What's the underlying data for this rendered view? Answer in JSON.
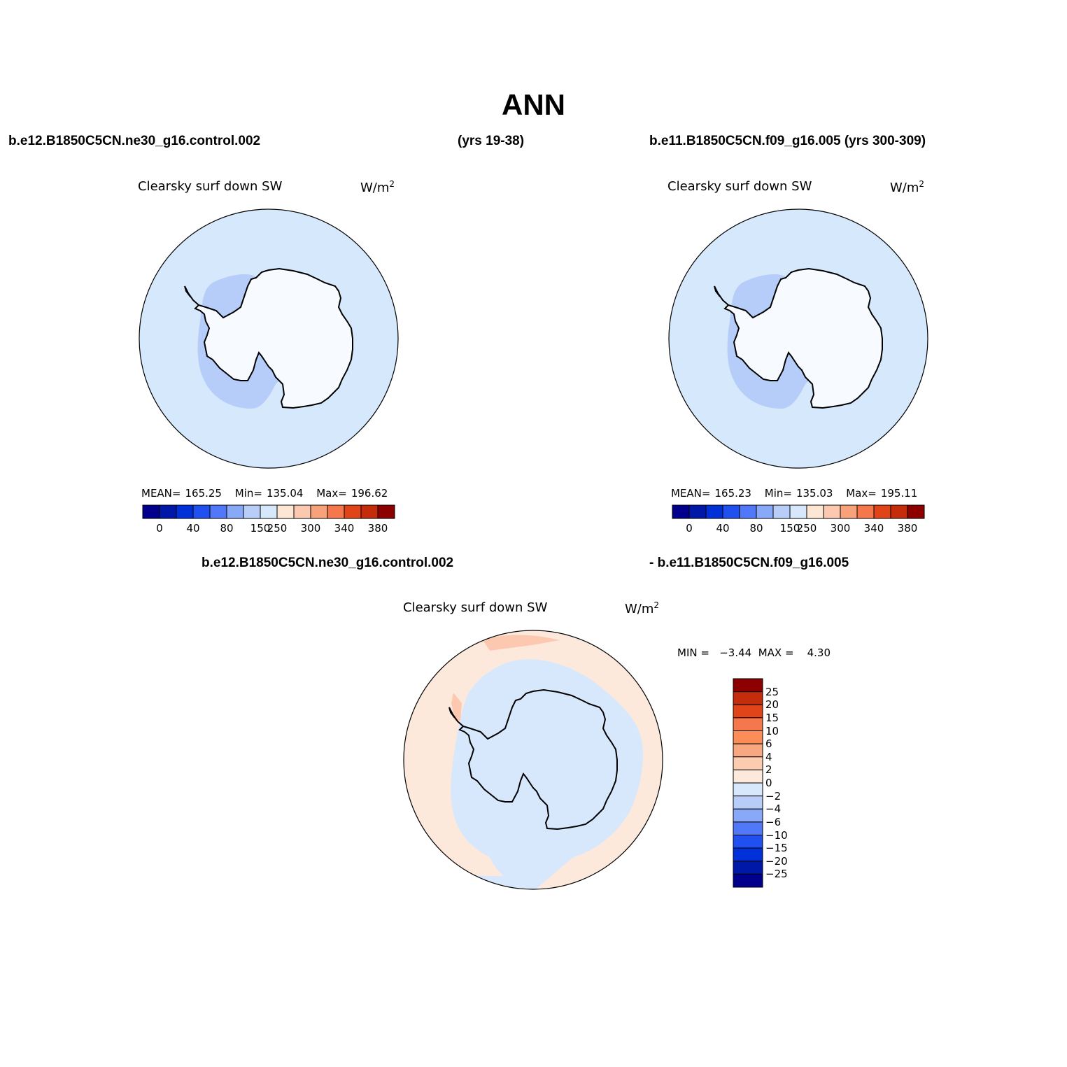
{
  "figure": {
    "title": "ANN",
    "case1_label": "b.e12.B1850C5CN.ne30_g16.control.002",
    "case1_years": "(yrs 19-38)",
    "case2_label": "b.e11.B1850C5CN.f09_g16.005 (yrs 300-309)",
    "diff_label_left": "b.e12.B1850C5CN.ne30_g16.control.002",
    "diff_label_right": "- b.e11.B1850C5CN.f09_g16.005"
  },
  "panels": {
    "left": {
      "title": "Clearsky surf down SW",
      "units": "W/m",
      "units_sup": "2",
      "mean_label": "MEAN=",
      "mean": "165.25",
      "min_label": "Min=",
      "min": "135.04",
      "max_label": "Max=",
      "max": "196.62"
    },
    "right": {
      "title": "Clearsky surf down SW",
      "units": "W/m",
      "units_sup": "2",
      "mean_label": "MEAN=",
      "mean": "165.23",
      "min_label": "Min=",
      "min": "135.03",
      "max_label": "Max=",
      "max": "195.11"
    },
    "diff": {
      "title": "Clearsky surf down SW",
      "units": "W/m",
      "units_sup": "2",
      "minmax": "MIN =   −3.44  MAX =    4.30"
    }
  },
  "colorbar_abs": {
    "colors": [
      "#00008c",
      "#0018a8",
      "#0030d8",
      "#2050f0",
      "#5078f8",
      "#88a8f8",
      "#b8cdf8",
      "#d8e8fc",
      "#fde6d4",
      "#fcc8b0",
      "#f8a27c",
      "#f4784c",
      "#e04418",
      "#c42c0c",
      "#8c0000"
    ],
    "labels": [
      "0",
      "40",
      "80",
      "150",
      "250",
      "300",
      "340",
      "380"
    ]
  },
  "colorbar_diff": {
    "colors_top_to_bottom": [
      "#8c0000",
      "#c42c0c",
      "#e04418",
      "#f4784c",
      "#fc8c58",
      "#f8a880",
      "#fcccb0",
      "#fde9dc",
      "#d8e8fc",
      "#b8cdf8",
      "#88a8f8",
      "#5078f8",
      "#2050f0",
      "#0030d8",
      "#0018a8",
      "#00008c"
    ],
    "labels": [
      "25",
      "20",
      "15",
      "10",
      "6",
      "4",
      "2",
      "0",
      "−2",
      "−4",
      "−6",
      "−10",
      "−15",
      "−20",
      "−25"
    ]
  },
  "map_colors": {
    "ocean_abs": "#d6e8fc",
    "interior_abs": "#b6cdfa",
    "land_abs": "#f7fbff",
    "diff_positive": "#fde9dc",
    "diff_positive_strong": "#fcc8b0",
    "diff_negative": "#d8e8fc"
  }
}
